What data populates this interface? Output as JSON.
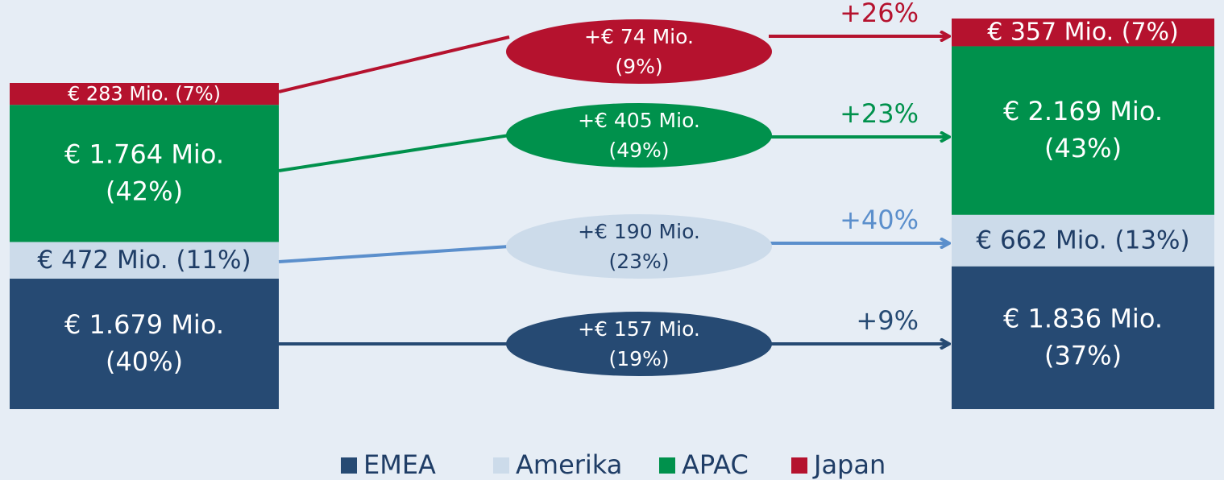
{
  "chart_data": {
    "type": "bar",
    "title": "",
    "colors": {
      "EMEA": "#264a73",
      "Amerika": "#ccdbea",
      "APAC": "#00914c",
      "Japan": "#b5122e",
      "Amerika_line": "#5b8fcc"
    },
    "series_order": [
      "EMEA",
      "Amerika",
      "APAC",
      "Japan"
    ],
    "start": [
      {
        "region": "Japan",
        "value": 283,
        "share": 7,
        "label": "€ 283 Mio. (7%)"
      },
      {
        "region": "APAC",
        "value": 1764,
        "share": 42,
        "label_lines": [
          "€ 1.764 Mio.",
          "(42%)"
        ]
      },
      {
        "region": "Amerika",
        "value": 472,
        "share": 11,
        "label": "€ 472 Mio. (11%)"
      },
      {
        "region": "EMEA",
        "value": 1679,
        "share": 40,
        "label_lines": [
          "€ 1.679 Mio.",
          "(40%)"
        ]
      }
    ],
    "end": [
      {
        "region": "Japan",
        "value": 357,
        "share": 7,
        "label": "€ 357 Mio. (7%)"
      },
      {
        "region": "APAC",
        "value": 2169,
        "share": 43,
        "label_lines": [
          "€ 2.169 Mio.",
          "(43%)"
        ]
      },
      {
        "region": "Amerika",
        "value": 662,
        "share": 13,
        "label": "€ 662 Mio. (13%)"
      },
      {
        "region": "EMEA",
        "value": 1836,
        "share": 37,
        "label_lines": [
          "€ 1.836 Mio.",
          "(37%)"
        ]
      }
    ],
    "changes": [
      {
        "region": "Japan",
        "delta": 74,
        "delta_share": 9,
        "lines": [
          "+€ 74 Mio.",
          "(9%)"
        ],
        "growth": "+26%"
      },
      {
        "region": "APAC",
        "delta": 405,
        "delta_share": 49,
        "lines": [
          "+€ 405 Mio.",
          "(49%)"
        ],
        "growth": "+23%"
      },
      {
        "region": "Amerika",
        "delta": 190,
        "delta_share": 23,
        "lines": [
          "+€ 190 Mio.",
          "(23%)"
        ],
        "growth": "+40%"
      },
      {
        "region": "EMEA",
        "delta": 157,
        "delta_share": 19,
        "lines": [
          "+€ 157 Mio.",
          "(19%)"
        ],
        "growth": "+9%"
      }
    ],
    "legend": {
      "placement": "bottom-center",
      "items": [
        "EMEA",
        "Amerika",
        "APAC",
        "Japan"
      ]
    }
  }
}
